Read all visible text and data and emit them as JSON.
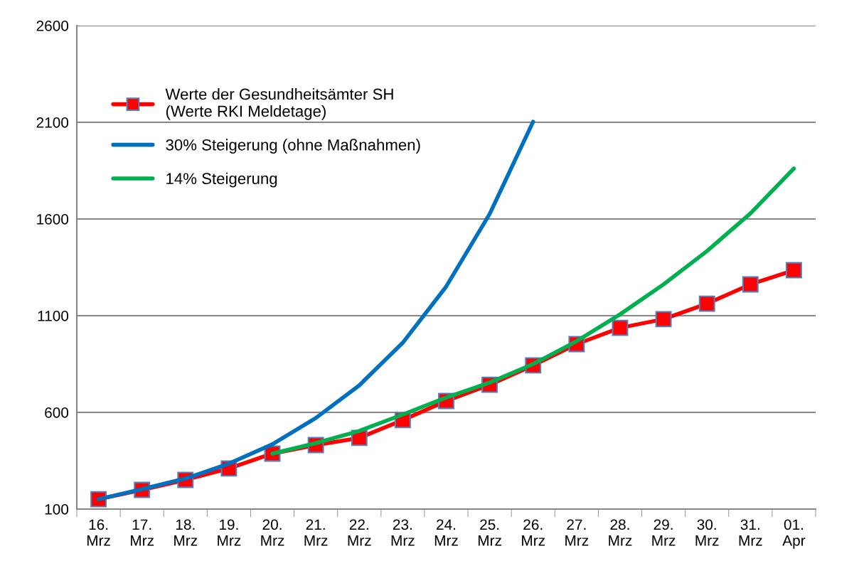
{
  "chart_data": {
    "type": "line",
    "categories": [
      "16.\nMrz",
      "17.\nMrz",
      "18.\nMrz",
      "19.\nMrz",
      "20.\nMrz",
      "21.\nMrz",
      "22.\nMrz",
      "23.\nMrz",
      "24.\nMrz",
      "25.\nMrz",
      "26.\nMrz",
      "27.\nMrz",
      "28.\nMrz",
      "29.\nMrz",
      "30.\nMrz",
      "31.\nMrz",
      "01.\nApr"
    ],
    "series": [
      {
        "name": "Werte der Gesundheitsämter SH\n(Werte RKI Meldetage)",
        "color": "#ff0000",
        "marker": "square",
        "values": [
          151,
          199,
          251,
          310,
          387,
          431,
          468,
          560,
          659,
          743,
          843,
          953,
          1037,
          1082,
          1162,
          1262,
          1335
        ]
      },
      {
        "name": "30% Steigerung (ohne Maßnahmen)",
        "color": "#0070c0",
        "marker": "none",
        "values": [
          151,
          203,
          258,
          335,
          435,
          571,
          740,
          960,
          1251,
          1626,
          2103,
          null,
          null,
          null,
          null,
          null,
          null
        ]
      },
      {
        "name": "14% Steigerung",
        "color": "#00b050",
        "marker": "none",
        "values": [
          null,
          null,
          null,
          null,
          387,
          441,
          504,
          589,
          677,
          754,
          850,
          968,
          1107,
          1262,
          1434,
          1629,
          1861
        ]
      }
    ],
    "ylim": [
      100,
      2600
    ],
    "yticks": [
      100,
      600,
      1100,
      1600,
      2100,
      2600
    ],
    "grid": "y",
    "legend": "top left"
  }
}
